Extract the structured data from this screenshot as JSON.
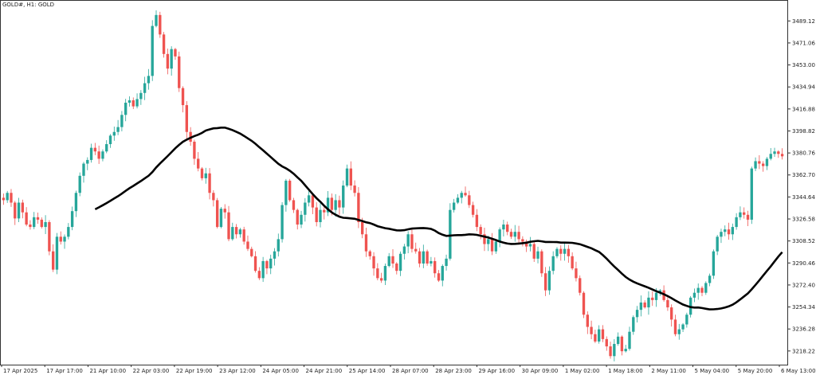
{
  "window": {
    "symbol_label": "GOLD#, H1:  GOLD"
  },
  "colors": {
    "bull": "#26a69a",
    "bear": "#ef5350",
    "ma": "#000000",
    "axis": "#333333",
    "background": "#ffffff"
  },
  "chart_data": {
    "type": "candlestick",
    "title": "GOLD#, H1:  GOLD",
    "y_ticks": [
      "3489.12",
      "3471.06",
      "3453.00",
      "3434.94",
      "3416.88",
      "3398.82",
      "3380.76",
      "3362.70",
      "3344.64",
      "3326.58",
      "3308.52",
      "3290.46",
      "3272.40",
      "3254.34",
      "3236.28",
      "3218.22"
    ],
    "x_ticks": [
      "17 Apr 2025",
      "17 Apr 17:00",
      "21 Apr 10:00",
      "22 Apr 03:00",
      "22 Apr 19:00",
      "23 Apr 12:00",
      "24 Apr 05:00",
      "24 Apr 21:00",
      "25 Apr 14:00",
      "28 Apr 07:00",
      "28 Apr 23:00",
      "29 Apr 16:00",
      "30 Apr 09:00",
      "1 May 02:00",
      "1 May 18:00",
      "2 May 11:00",
      "5 May 04:00",
      "5 May 20:00",
      "6 May 13:00"
    ],
    "ylim": [
      3207,
      3505
    ],
    "closes": [
      3342,
      3348,
      3340,
      3327,
      3340,
      3332,
      3322,
      3320,
      3328,
      3326,
      3320,
      3324,
      3300,
      3285,
      3312,
      3308,
      3312,
      3320,
      3333,
      3348,
      3362,
      3372,
      3375,
      3385,
      3382,
      3376,
      3382,
      3388,
      3395,
      3398,
      3402,
      3412,
      3422,
      3424,
      3419,
      3425,
      3430,
      3438,
      3444,
      3485,
      3494,
      3478,
      3462,
      3450,
      3466,
      3460,
      3434,
      3420,
      3398,
      3390,
      3376,
      3368,
      3360,
      3364,
      3348,
      3342,
      3320,
      3335,
      3332,
      3310,
      3320,
      3314,
      3318,
      3308,
      3302,
      3296,
      3284,
      3278,
      3292,
      3286,
      3294,
      3300,
      3310,
      3338,
      3358,
      3342,
      3334,
      3322,
      3330,
      3340,
      3346,
      3336,
      3324,
      3334,
      3332,
      3344,
      3334,
      3342,
      3336,
      3354,
      3368,
      3354,
      3348,
      3324,
      3314,
      3300,
      3296,
      3286,
      3278,
      3276,
      3288,
      3296,
      3290,
      3284,
      3298,
      3304,
      3314,
      3302,
      3300,
      3290,
      3300,
      3290,
      3292,
      3282,
      3276,
      3288,
      3294,
      3334,
      3340,
      3344,
      3348,
      3346,
      3338,
      3330,
      3320,
      3314,
      3306,
      3310,
      3300,
      3308,
      3318,
      3322,
      3316,
      3312,
      3316,
      3310,
      3308,
      3304,
      3306,
      3294,
      3300,
      3282,
      3268,
      3284,
      3296,
      3302,
      3298,
      3302,
      3296,
      3286,
      3278,
      3266,
      3248,
      3238,
      3232,
      3226,
      3236,
      3228,
      3222,
      3214,
      3224,
      3230,
      3218,
      3220,
      3234,
      3246,
      3252,
      3258,
      3254,
      3262,
      3260,
      3266,
      3268,
      3260,
      3254,
      3244,
      3232,
      3236,
      3240,
      3248,
      3262,
      3266,
      3270,
      3266,
      3274,
      3280,
      3300,
      3312,
      3316,
      3318,
      3314,
      3320,
      3328,
      3332,
      3330,
      3326,
      3368,
      3374,
      3372,
      3370,
      3376,
      3380,
      3382,
      3380,
      3378
    ],
    "ma_series": "moving average (black line)"
  }
}
